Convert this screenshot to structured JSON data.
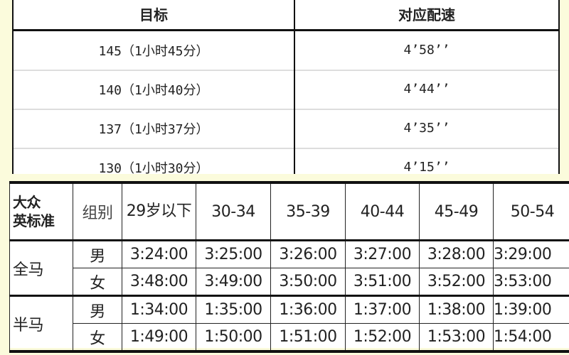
{
  "pace_table": {
    "headers": [
      "目标",
      "对应配速"
    ],
    "rows": [
      {
        "target": "145（1小时45分）",
        "pace": "4’58’’"
      },
      {
        "target": "140（1小时40分）",
        "pace": "4’44’’"
      },
      {
        "target": "137（1小时37分）",
        "pace": "4’35’’"
      },
      {
        "target": "130（1小时30分）",
        "pace": "4’15’’"
      }
    ]
  },
  "standard_table": {
    "corner_line1": "大众",
    "corner_line2": "英标准",
    "group_header": "组别",
    "age_groups": [
      "29岁以下",
      "30-34",
      "35-39",
      "40-44",
      "45-49",
      "50-54"
    ],
    "sections": [
      {
        "name": "全马",
        "rows": [
          {
            "gender": "男",
            "times": [
              "3:24:00",
              "3:25:00",
              "3:26:00",
              "3:27:00",
              "3:28:00",
              "3:29:00"
            ]
          },
          {
            "gender": "女",
            "times": [
              "3:48:00",
              "3:49:00",
              "3:50:00",
              "3:51:00",
              "3:52:00",
              "3:53:00"
            ]
          }
        ]
      },
      {
        "name": "半马",
        "rows": [
          {
            "gender": "男",
            "times": [
              "1:34:00",
              "1:35:00",
              "1:36:00",
              "1:37:00",
              "1:38:00",
              "1:39:00"
            ]
          },
          {
            "gender": "女",
            "times": [
              "1:49:00",
              "1:50:00",
              "1:51:00",
              "1:52:00",
              "1:53:00",
              "1:54:00"
            ]
          }
        ]
      }
    ]
  }
}
